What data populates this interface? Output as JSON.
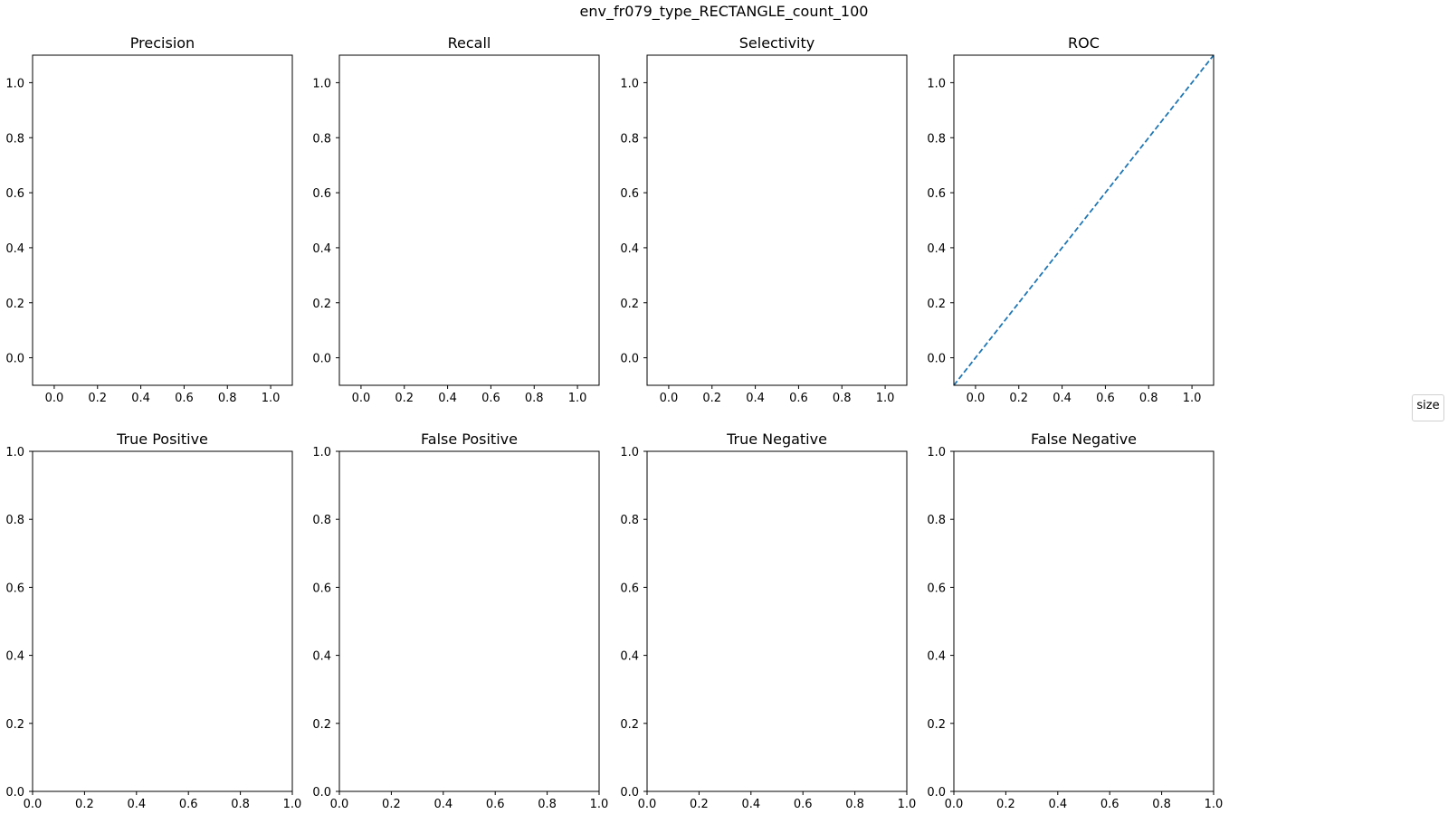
{
  "chart_data": {
    "suptitle": "env_fr079_type_RECTANGLE_count_100",
    "legend_title": "size",
    "legend_location": "right",
    "panels": [
      {
        "title": "Precision",
        "type": "line",
        "xlim": [
          -0.1,
          1.1
        ],
        "ylim": [
          -0.1,
          1.1
        ],
        "xticks": [
          "0.0",
          "0.2",
          "0.4",
          "0.6",
          "0.8",
          "1.0"
        ],
        "yticks": [
          "0.0",
          "0.2",
          "0.4",
          "0.6",
          "0.8",
          "1.0"
        ],
        "series": []
      },
      {
        "title": "Recall",
        "type": "line",
        "xlim": [
          -0.1,
          1.1
        ],
        "ylim": [
          -0.1,
          1.1
        ],
        "xticks": [
          "0.0",
          "0.2",
          "0.4",
          "0.6",
          "0.8",
          "1.0"
        ],
        "yticks": [
          "0.0",
          "0.2",
          "0.4",
          "0.6",
          "0.8",
          "1.0"
        ],
        "series": []
      },
      {
        "title": "Selectivity",
        "type": "line",
        "xlim": [
          -0.1,
          1.1
        ],
        "ylim": [
          -0.1,
          1.1
        ],
        "xticks": [
          "0.0",
          "0.2",
          "0.4",
          "0.6",
          "0.8",
          "1.0"
        ],
        "yticks": [
          "0.0",
          "0.2",
          "0.4",
          "0.6",
          "0.8",
          "1.0"
        ],
        "series": []
      },
      {
        "title": "ROC",
        "type": "line",
        "xlim": [
          -0.1,
          1.1
        ],
        "ylim": [
          -0.1,
          1.1
        ],
        "xticks": [
          "0.0",
          "0.2",
          "0.4",
          "0.6",
          "0.8",
          "1.0"
        ],
        "yticks": [
          "0.0",
          "0.2",
          "0.4",
          "0.6",
          "0.8",
          "1.0"
        ],
        "series": [],
        "diagonal": {
          "x": [
            -0.1,
            1.1
          ],
          "y": [
            -0.1,
            1.1
          ],
          "color": "#1f77b4",
          "style": "dashed"
        }
      },
      {
        "title": "True Positive",
        "type": "line",
        "xlim": [
          0,
          1
        ],
        "ylim": [
          0,
          1
        ],
        "xticks": [
          "0.0",
          "0.2",
          "0.4",
          "0.6",
          "0.8",
          "1.0"
        ],
        "yticks": [
          "0.0",
          "0.2",
          "0.4",
          "0.6",
          "0.8",
          "1.0"
        ],
        "series": []
      },
      {
        "title": "False Positive",
        "type": "line",
        "xlim": [
          0,
          1
        ],
        "ylim": [
          0,
          1
        ],
        "xticks": [
          "0.0",
          "0.2",
          "0.4",
          "0.6",
          "0.8",
          "1.0"
        ],
        "yticks": [
          "0.0",
          "0.2",
          "0.4",
          "0.6",
          "0.8",
          "1.0"
        ],
        "series": []
      },
      {
        "title": "True Negative",
        "type": "line",
        "xlim": [
          0,
          1
        ],
        "ylim": [
          0,
          1
        ],
        "xticks": [
          "0.0",
          "0.2",
          "0.4",
          "0.6",
          "0.8",
          "1.0"
        ],
        "yticks": [
          "0.0",
          "0.2",
          "0.4",
          "0.6",
          "0.8",
          "1.0"
        ],
        "series": []
      },
      {
        "title": "False Negative",
        "type": "line",
        "xlim": [
          0,
          1
        ],
        "ylim": [
          0,
          1
        ],
        "xticks": [
          "0.0",
          "0.2",
          "0.4",
          "0.6",
          "0.8",
          "1.0"
        ],
        "yticks": [
          "0.0",
          "0.2",
          "0.4",
          "0.6",
          "0.8",
          "1.0"
        ],
        "series": []
      }
    ]
  }
}
